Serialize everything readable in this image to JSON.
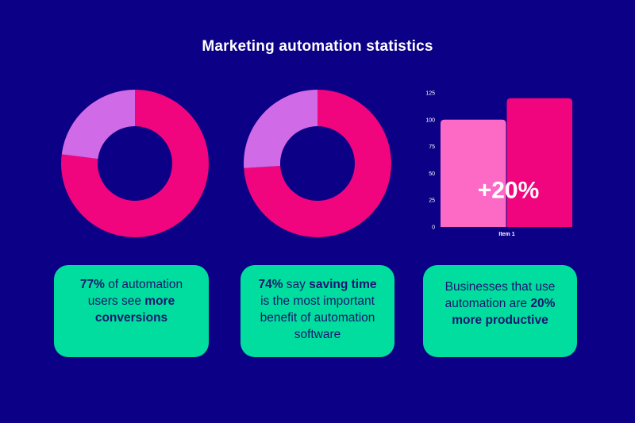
{
  "title": "Marketing automation statistics",
  "colors": {
    "background": "#0c0186",
    "donut_major": "#f0057e",
    "donut_minor": "#d06ae6",
    "bar_light": "#fd6ac6",
    "bar_dark": "#f0057e",
    "card": "#00dd9e",
    "card_text": "#1a1670"
  },
  "chart_data": [
    {
      "type": "pie",
      "variant": "donut",
      "slices": [
        {
          "value": 77,
          "color": "#f0057e"
        },
        {
          "value": 23,
          "color": "#d06ae6"
        }
      ]
    },
    {
      "type": "pie",
      "variant": "donut",
      "slices": [
        {
          "value": 74,
          "color": "#f0057e"
        },
        {
          "value": 26,
          "color": "#d06ae6"
        }
      ]
    },
    {
      "type": "bar",
      "categories": [
        "Item 1"
      ],
      "series": [
        {
          "values": [
            100
          ],
          "color": "#fd6ac6"
        },
        {
          "values": [
            120
          ],
          "color": "#f0057e"
        }
      ],
      "ylim": [
        0,
        125
      ],
      "yticks": [
        0,
        25,
        50,
        75,
        100,
        125
      ],
      "annotation": "+20%",
      "grid": false
    }
  ],
  "cards": [
    {
      "segments": [
        {
          "text": "77%",
          "bold": true
        },
        {
          "text": " of automation users see ",
          "bold": false
        },
        {
          "text": "more conversions",
          "bold": true
        }
      ]
    },
    {
      "segments": [
        {
          "text": "74%",
          "bold": true
        },
        {
          "text": " say ",
          "bold": false
        },
        {
          "text": "saving time",
          "bold": true
        },
        {
          "text": " is the most important benefit of automation software",
          "bold": false
        }
      ]
    },
    {
      "segments": [
        {
          "text": "Businesses that use automation are ",
          "bold": false
        },
        {
          "text": "20% more productive",
          "bold": true
        }
      ]
    }
  ]
}
